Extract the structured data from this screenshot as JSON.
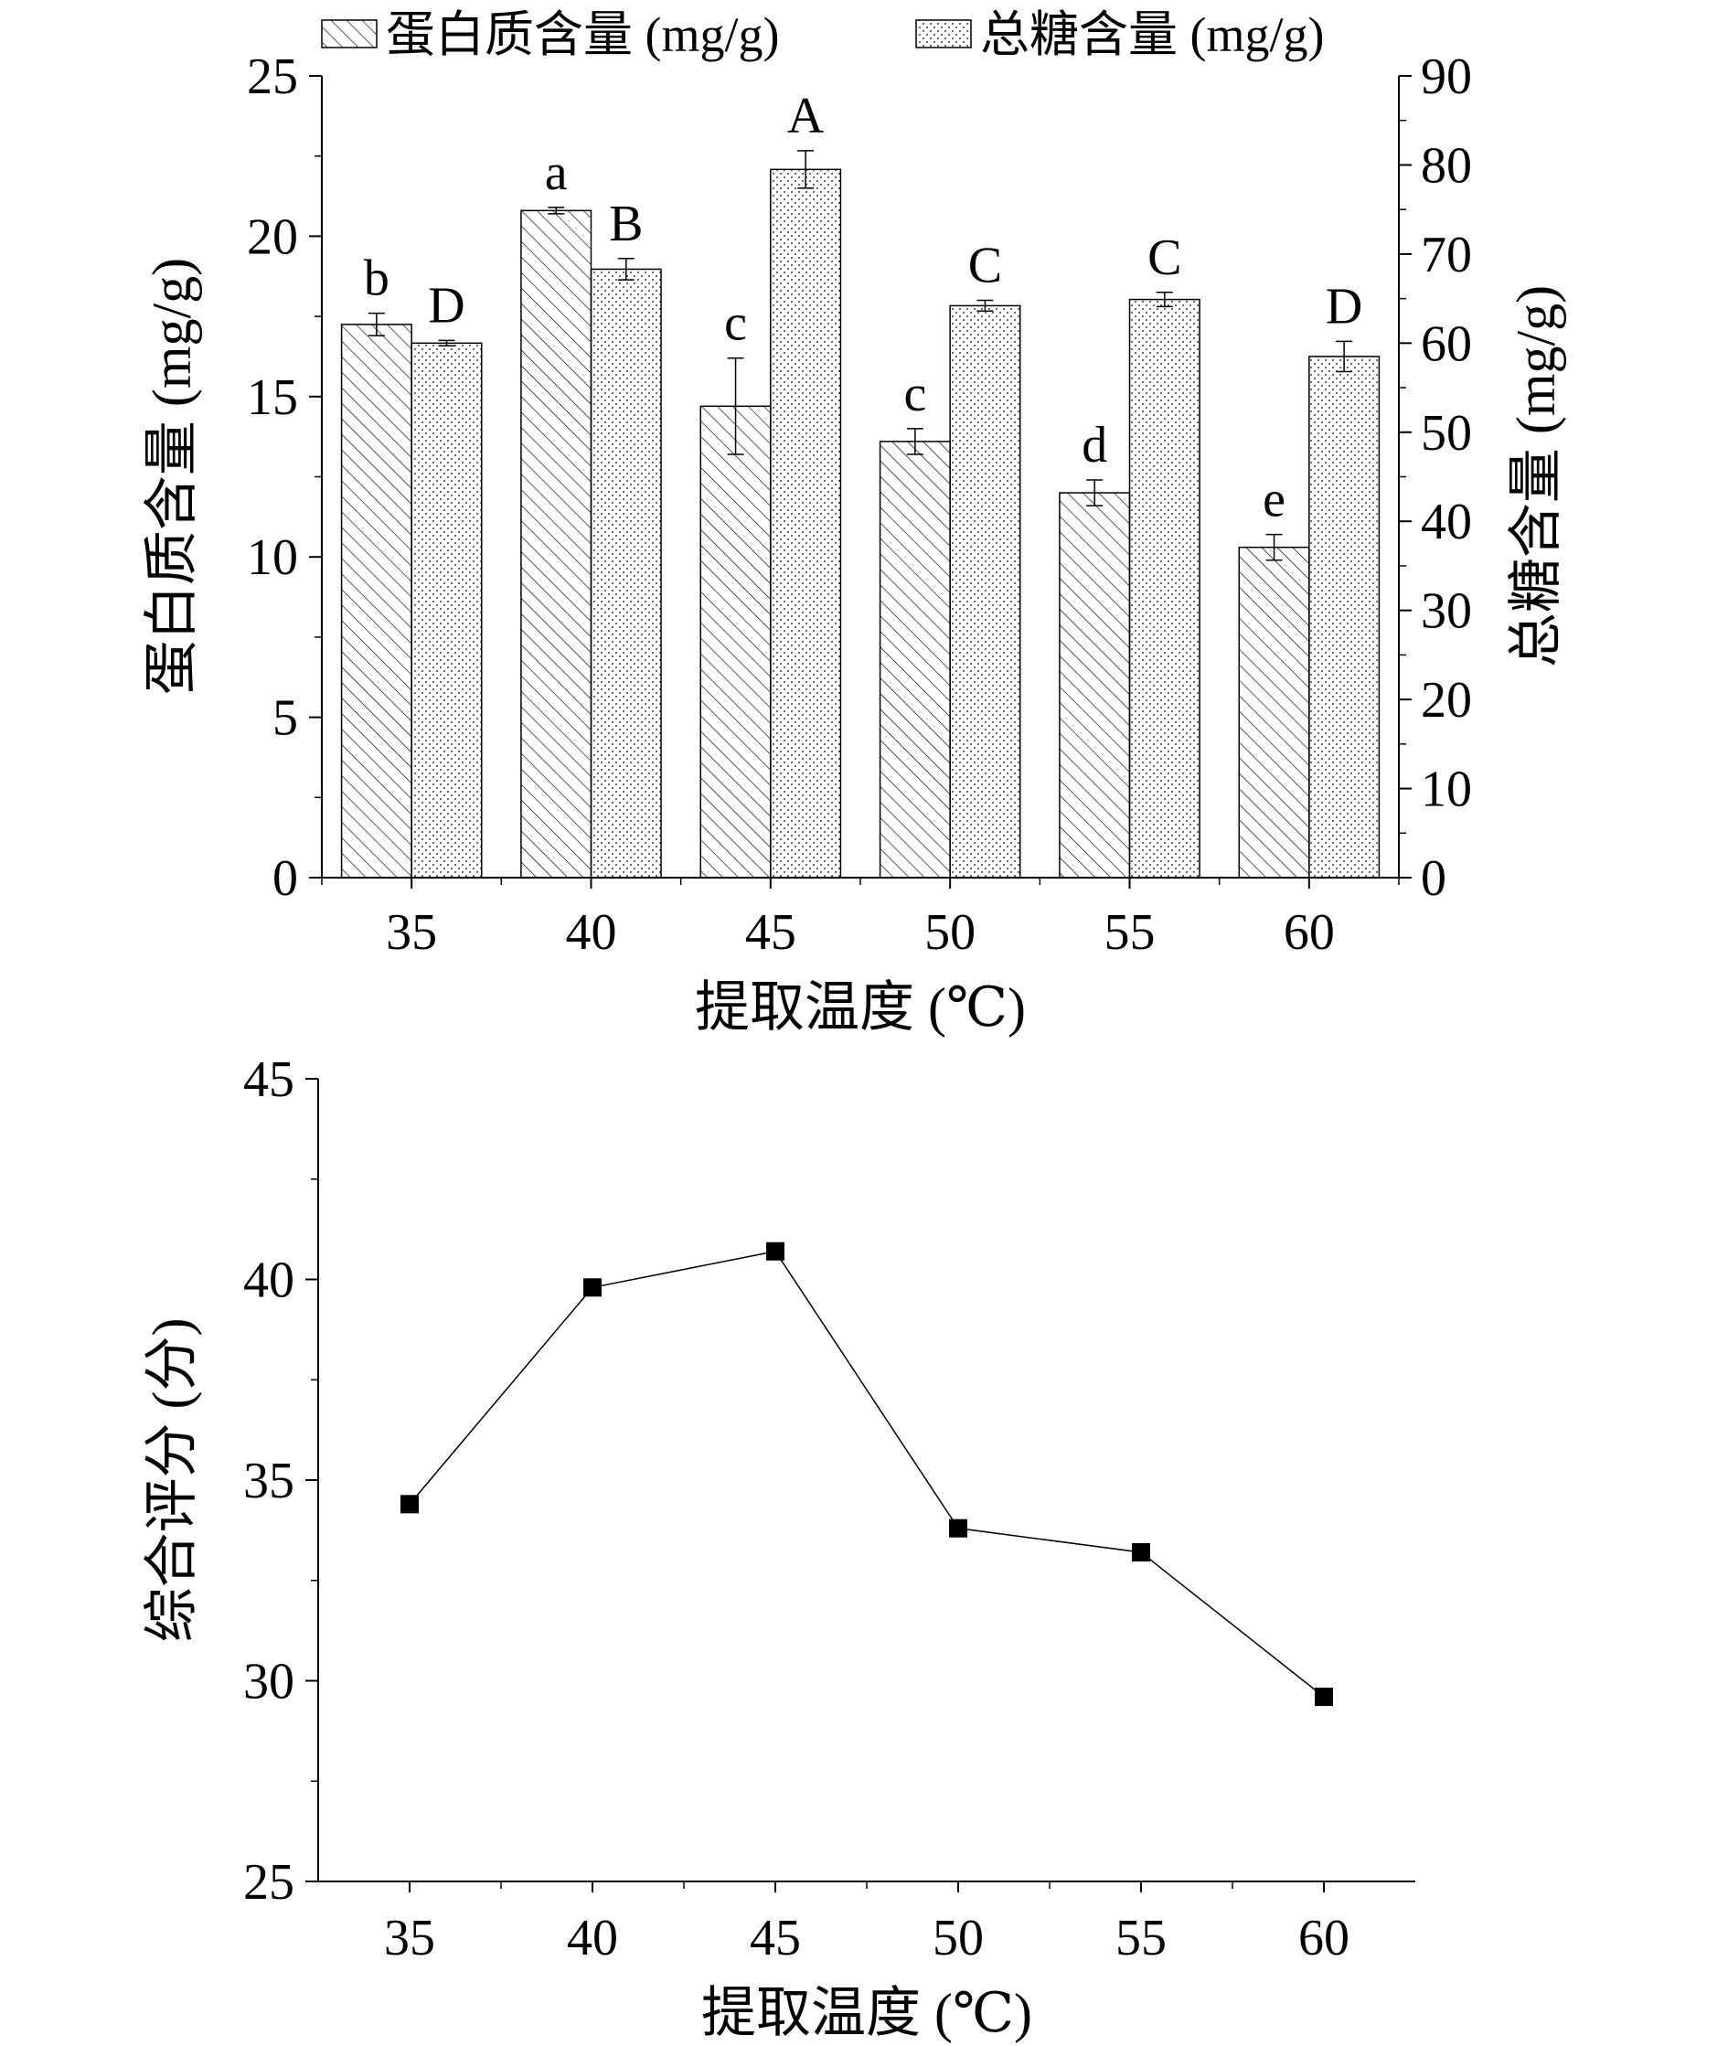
{
  "chart_data": [
    {
      "type": "bar",
      "title": "",
      "categories": [
        "35",
        "40",
        "45",
        "50",
        "55",
        "60"
      ],
      "xlabel": "提取温度 (℃)",
      "ylabel": "蛋白质含量 (mg/g)",
      "ylabel_right": "总糖含量 (mg/g)",
      "ylim": [
        0,
        25
      ],
      "ylim_right": [
        0,
        90
      ],
      "yticks": [
        "0",
        "5",
        "10",
        "15",
        "20",
        "25"
      ],
      "yticks_right": [
        "0",
        "10",
        "20",
        "30",
        "40",
        "50",
        "60",
        "70",
        "80",
        "90"
      ],
      "legend_position": "top",
      "grid": false,
      "series": [
        {
          "name": "蛋白质含量 (mg/g)",
          "axis": "left",
          "pattern": "diagonal-hatch",
          "values": [
            17.25,
            20.8,
            14.7,
            13.6,
            12.0,
            10.3
          ],
          "errors": [
            0.35,
            0.1,
            1.5,
            0.4,
            0.4,
            0.4
          ],
          "labels": [
            "b",
            "a",
            "c",
            "c",
            "d",
            "e"
          ]
        },
        {
          "name": "总糖含量 (mg/g)",
          "axis": "right",
          "pattern": "dots",
          "values": [
            60.0,
            68.3,
            79.5,
            64.2,
            64.9,
            58.5
          ],
          "errors": [
            0.3,
            1.2,
            2.1,
            0.6,
            0.8,
            1.7
          ],
          "labels": [
            "D",
            "B",
            "A",
            "C",
            "C",
            "D"
          ]
        }
      ]
    },
    {
      "type": "line",
      "title": "",
      "x": [
        35,
        40,
        45,
        50,
        55,
        60
      ],
      "xticks": [
        "35",
        "40",
        "45",
        "50",
        "55",
        "60"
      ],
      "xlabel": "提取温度 (℃)",
      "ylabel": "综合评分 (分)",
      "ylim": [
        25,
        45
      ],
      "yticks": [
        "25",
        "30",
        "35",
        "40",
        "45"
      ],
      "grid": false,
      "series": [
        {
          "values": [
            34.4,
            39.8,
            40.7,
            33.8,
            33.2,
            29.6
          ],
          "marker": "square"
        }
      ]
    }
  ]
}
